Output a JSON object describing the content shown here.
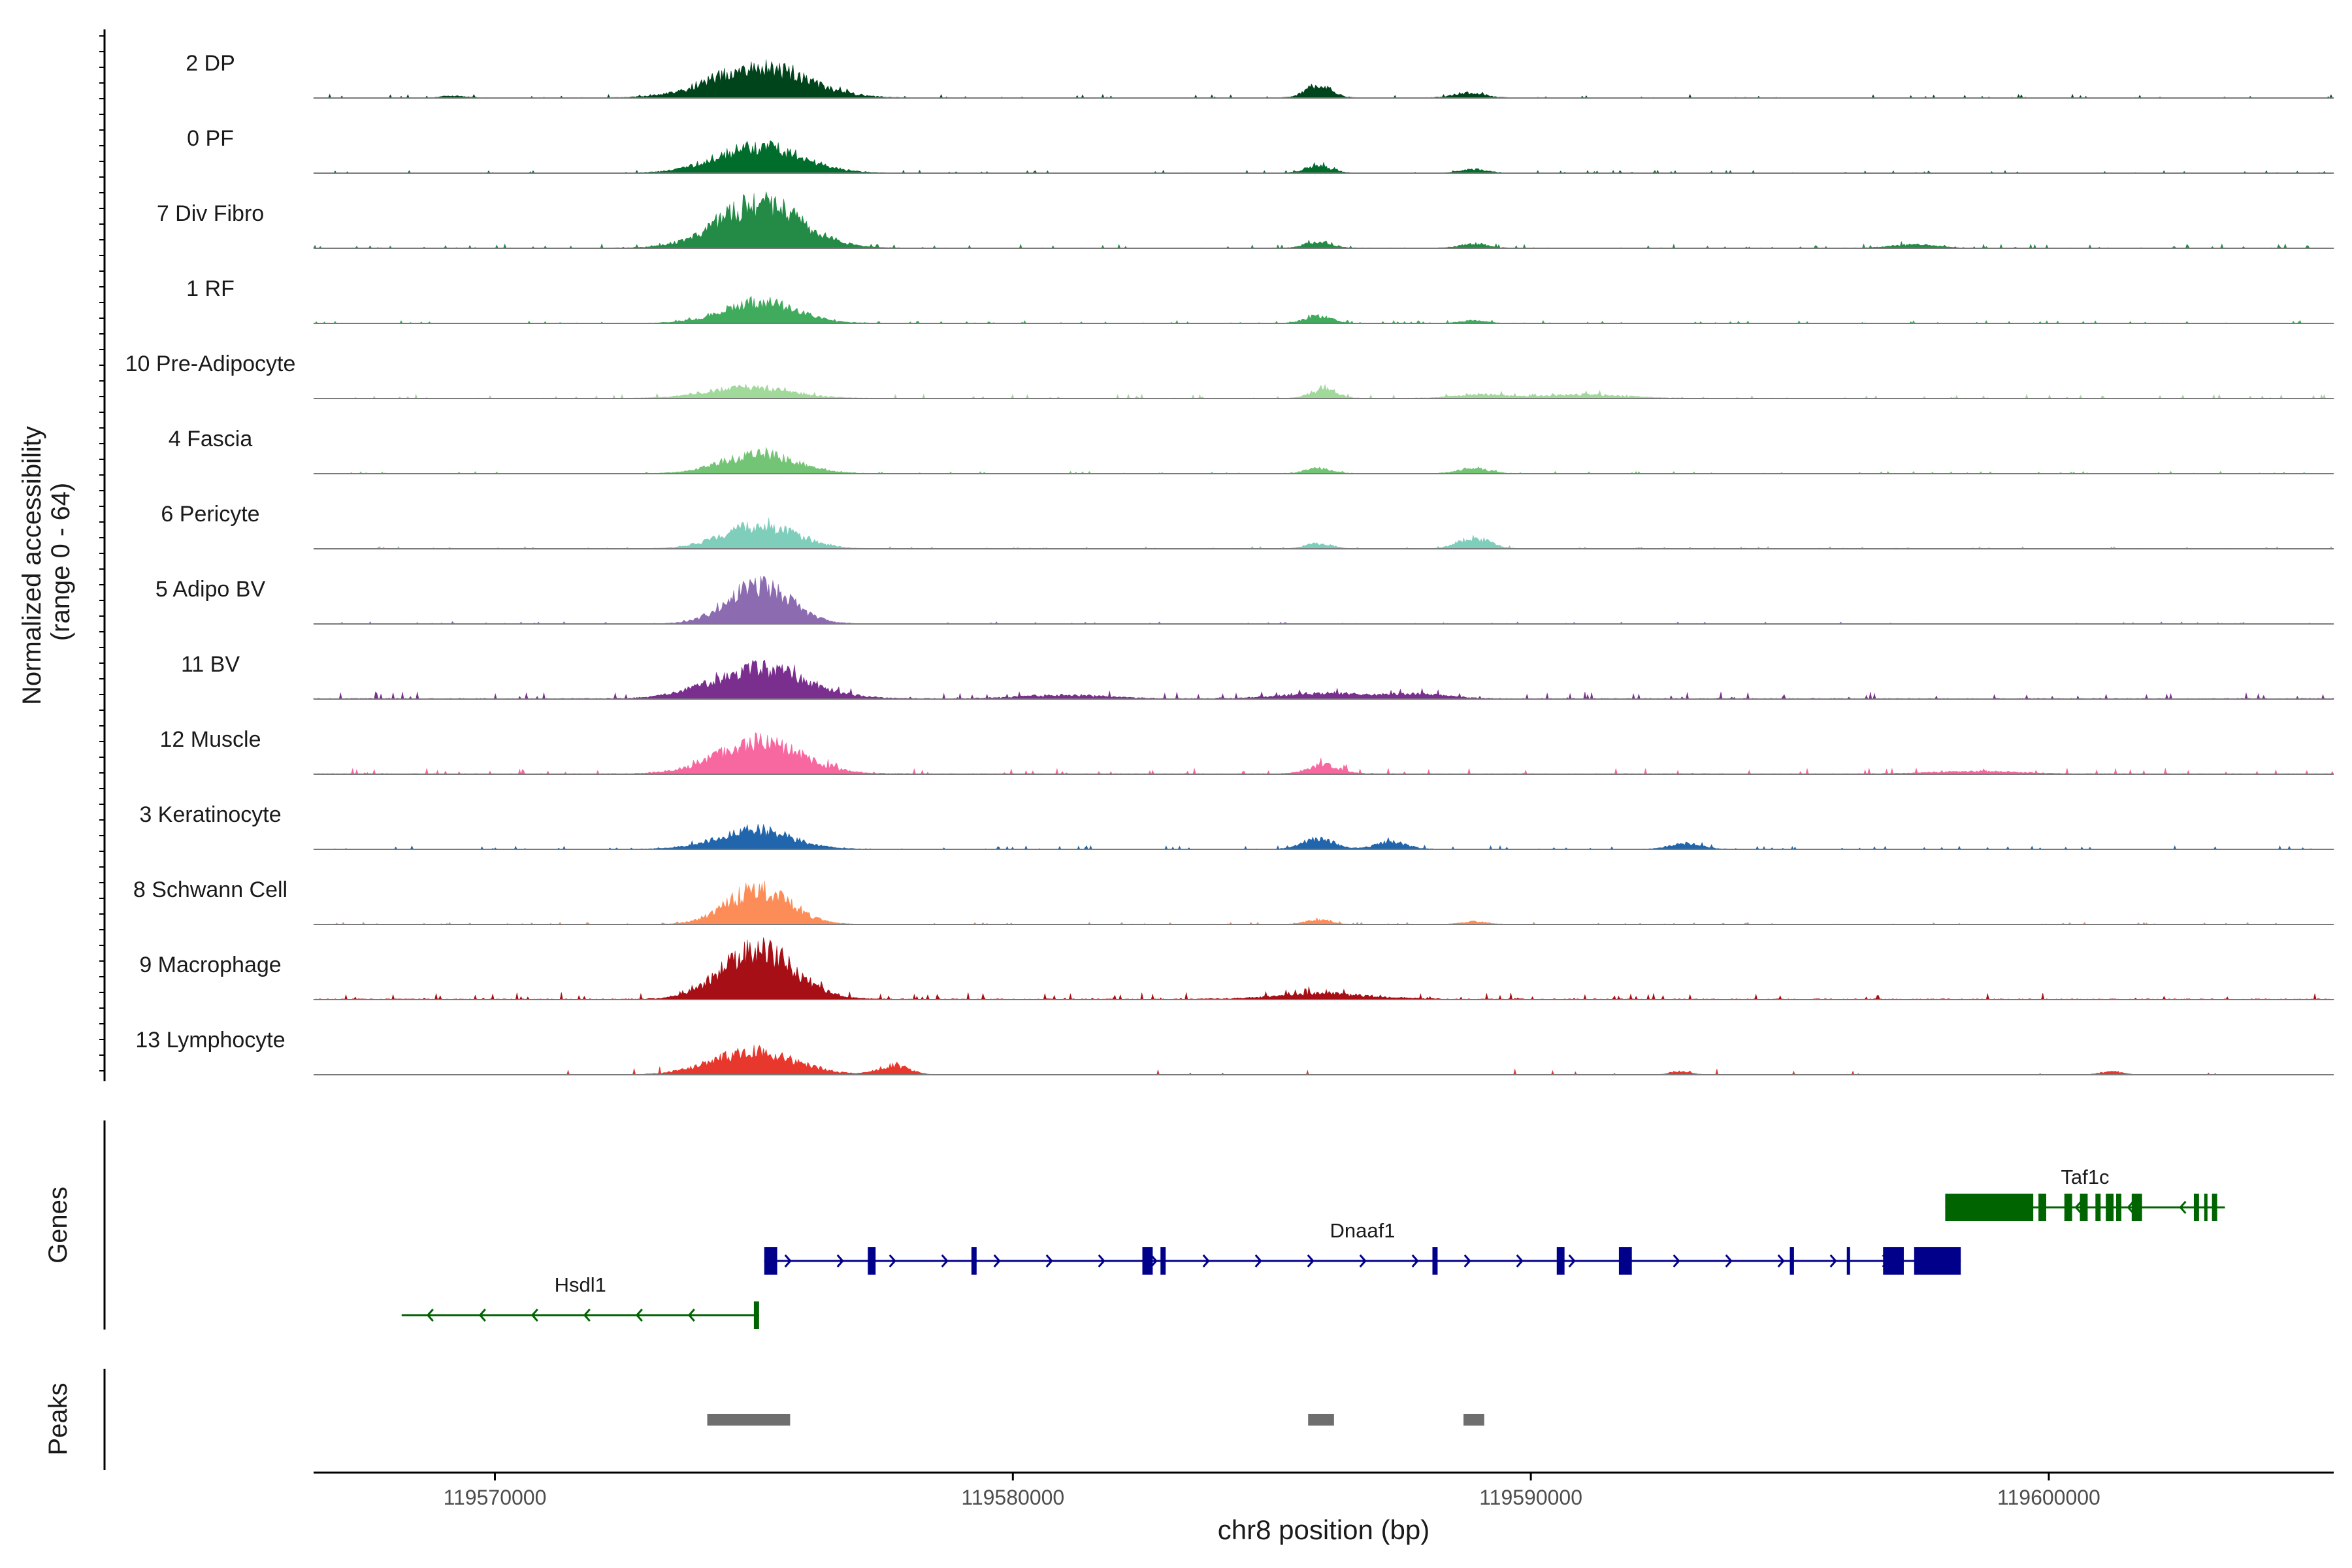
{
  "chart_data": {
    "type": "area",
    "title": "",
    "ylabel_line1": "Normalized accessibility",
    "ylabel_line2": "(range 0 - 64)",
    "xlabel": "chr8 position (bp)",
    "xlim": [
      119566500,
      119605500
    ],
    "x_ticks": [
      119570000,
      119580000,
      119590000,
      119600000
    ],
    "x_tick_labels": [
      "119570000",
      "119580000",
      "119590000",
      "119600000"
    ],
    "ylim": [
      0,
      64
    ],
    "tracks": [
      {
        "name": "2 DP",
        "color": "#00441b",
        "peaks": [
          [
            119575100,
            35,
            900
          ],
          [
            119585900,
            14,
            250
          ],
          [
            119588800,
            5,
            300
          ],
          [
            119569200,
            2,
            250
          ]
        ],
        "noise": 1.5,
        "seed": 3
      },
      {
        "name": "0 PF",
        "color": "#006d2c",
        "peaks": [
          [
            119575100,
            30,
            800
          ],
          [
            119585900,
            8,
            250
          ],
          [
            119588900,
            4,
            250
          ]
        ],
        "noise": 1.2,
        "seed": 7
      },
      {
        "name": "7 Div Fibro",
        "color": "#238b45",
        "peaks": [
          [
            119575100,
            50,
            800
          ],
          [
            119585900,
            7,
            250
          ],
          [
            119588900,
            5,
            250
          ],
          [
            119597400,
            4,
            400
          ]
        ],
        "noise": 1.8,
        "seed": 11
      },
      {
        "name": "1 RF",
        "color": "#41ab5d",
        "peaks": [
          [
            119575100,
            24,
            700
          ],
          [
            119585900,
            8,
            250
          ],
          [
            119588900,
            3,
            250
          ]
        ],
        "noise": 1.2,
        "seed": 13
      },
      {
        "name": "10 Pre-Adipocyte",
        "color": "#a1d99b",
        "peaks": [
          [
            119574900,
            12,
            800
          ],
          [
            119586000,
            10,
            250
          ],
          [
            119589000,
            4,
            500
          ],
          [
            119591000,
            4,
            800
          ]
        ],
        "noise": 1.8,
        "seed": 17
      },
      {
        "name": "4 Fascia",
        "color": "#74c476",
        "peaks": [
          [
            119575100,
            22,
            700
          ],
          [
            119585900,
            6,
            250
          ],
          [
            119588900,
            6,
            300
          ]
        ],
        "noise": 1.0,
        "seed": 19
      },
      {
        "name": "6 Pericyte",
        "color": "#7fcdbb",
        "peaks": [
          [
            119575100,
            26,
            700
          ],
          [
            119585900,
            6,
            250
          ],
          [
            119588900,
            12,
            300
          ]
        ],
        "noise": 1.0,
        "seed": 23
      },
      {
        "name": "5 Adipo BV",
        "color": "#8c6bb1",
        "peaks": [
          [
            119575100,
            44,
            600
          ]
        ],
        "noise": 1.0,
        "seed": 29
      },
      {
        "name": "11 BV",
        "color": "#7a2f8e",
        "peaks": [
          [
            119575100,
            34,
            900
          ],
          [
            119586000,
            6,
            800
          ],
          [
            119581000,
            4,
            800
          ],
          [
            119587800,
            5,
            600
          ]
        ],
        "noise": 3.0,
        "seed": 31
      },
      {
        "name": "12 Muscle",
        "color": "#f768a1",
        "peaks": [
          [
            119575100,
            36,
            800
          ],
          [
            119586000,
            10,
            300
          ],
          [
            119598600,
            3,
            800
          ]
        ],
        "noise": 2.5,
        "seed": 37
      },
      {
        "name": "3 Keratinocyte",
        "color": "#2166ac",
        "peaks": [
          [
            119575000,
            22,
            700
          ],
          [
            119585900,
            12,
            300
          ],
          [
            119587300,
            8,
            300
          ],
          [
            119593000,
            6,
            300
          ]
        ],
        "noise": 1.5,
        "seed": 41
      },
      {
        "name": "8 Schwann Cell",
        "color": "#fc8d59",
        "peaks": [
          [
            119575100,
            40,
            600
          ],
          [
            119585900,
            5,
            250
          ],
          [
            119588900,
            3,
            250
          ]
        ],
        "noise": 1.0,
        "seed": 43
      },
      {
        "name": "9 Macrophage",
        "color": "#a50f15",
        "peaks": [
          [
            119575100,
            55,
            700
          ],
          [
            119586000,
            6,
            900
          ]
        ],
        "noise": 3.0,
        "seed": 47
      },
      {
        "name": "13 Lymphocyte",
        "color": "#e8372c",
        "peaks": [
          [
            119575000,
            26,
            800
          ],
          [
            119577700,
            10,
            300
          ],
          [
            119592900,
            4,
            200
          ],
          [
            119601200,
            4,
            200
          ]
        ],
        "noise": 2.0,
        "seed": 53,
        "sparse": true
      }
    ],
    "genes_label": "Genes",
    "genes": [
      {
        "name": "Taf1c",
        "strand": "-",
        "start": 119598000,
        "end": 119603400,
        "color": "#006400",
        "exons": [
          [
            119598000,
            119599700
          ],
          [
            119599800,
            119599950
          ],
          [
            119600300,
            119600450
          ],
          [
            119600600,
            119600750
          ],
          [
            119600900,
            119601000
          ],
          [
            119601100,
            119601250
          ],
          [
            119601300,
            119601400
          ],
          [
            119601600,
            119601800
          ],
          [
            119602800,
            119602900
          ],
          [
            119603000,
            119603050
          ],
          [
            119603150,
            119603250
          ]
        ]
      },
      {
        "name": "Dnaaf1",
        "strand": "+",
        "start": 119575200,
        "end": 119598300,
        "color": "#00008b",
        "exons": [
          [
            119575200,
            119575450
          ],
          [
            119577200,
            119577350
          ],
          [
            119579200,
            119579300
          ],
          [
            119582500,
            119582700
          ],
          [
            119582850,
            119582950
          ],
          [
            119588100,
            119588200
          ],
          [
            119590500,
            119590650
          ],
          [
            119591700,
            119591950
          ],
          [
            119595000,
            119595080
          ],
          [
            119596100,
            119596150
          ],
          [
            119596800,
            119597200
          ],
          [
            119597400,
            119598300
          ]
        ]
      },
      {
        "name": "Hsdl1",
        "strand": "-",
        "start": 119568200,
        "end": 119575100,
        "color": "#006400",
        "exons": [
          [
            119575000,
            119575100
          ]
        ]
      }
    ],
    "peaks_label": "Peaks",
    "peak_regions": [
      [
        119574100,
        119575700
      ],
      [
        119585700,
        119586200
      ],
      [
        119588700,
        119589100
      ]
    ]
  }
}
